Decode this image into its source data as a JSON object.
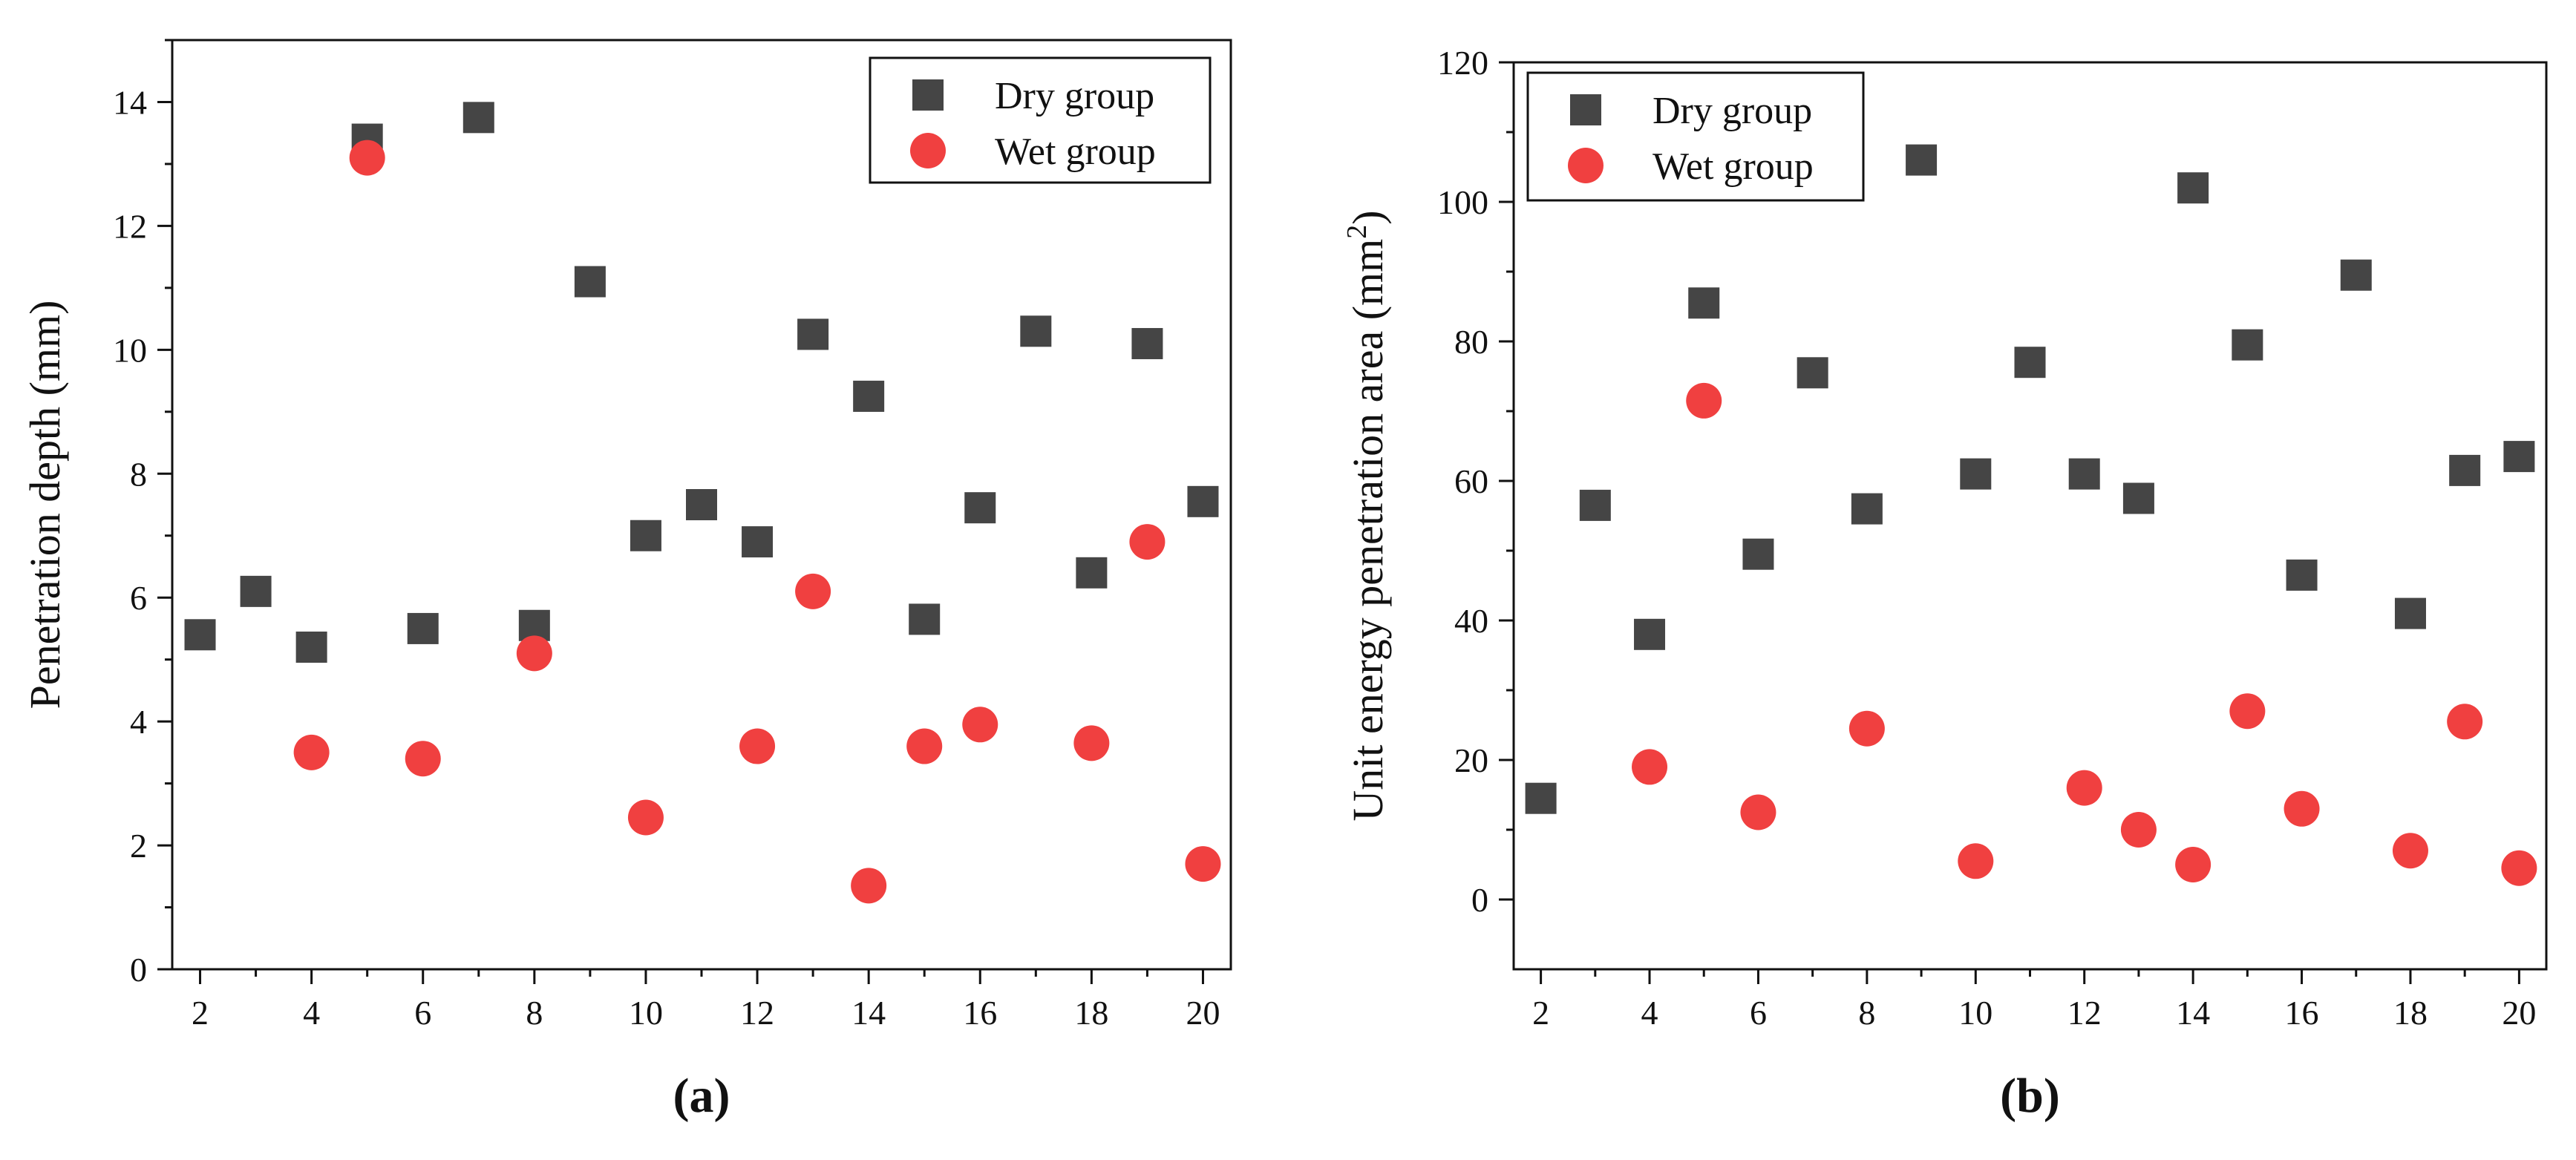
{
  "chart_data": [
    {
      "type": "scatter",
      "panel_label": "(a)",
      "xlabel": "",
      "ylabel": "Penetration depth (mm)",
      "xlim": [
        1.5,
        20.5
      ],
      "ylim": [
        0,
        15
      ],
      "xticks": [
        2,
        4,
        6,
        8,
        10,
        12,
        14,
        16,
        18,
        20
      ],
      "yticks": [
        0,
        2,
        4,
        6,
        8,
        10,
        12,
        14
      ],
      "grid": false,
      "legend_position": "top-right",
      "series": [
        {
          "name": "Dry group",
          "marker": "square",
          "color": "#454545",
          "points": [
            [
              2,
              5.4
            ],
            [
              3,
              6.1
            ],
            [
              4,
              5.2
            ],
            [
              5,
              13.4
            ],
            [
              6,
              5.5
            ],
            [
              7,
              13.75
            ],
            [
              8,
              5.55
            ],
            [
              9,
              11.1
            ],
            [
              10,
              7.0
            ],
            [
              11,
              7.5
            ],
            [
              12,
              6.9
            ],
            [
              13,
              10.25
            ],
            [
              14,
              9.25
            ],
            [
              15,
              5.65
            ],
            [
              16,
              7.45
            ],
            [
              17,
              10.3
            ],
            [
              18,
              6.4
            ],
            [
              19,
              10.1
            ],
            [
              20,
              7.55
            ]
          ]
        },
        {
          "name": "Wet group",
          "marker": "circle",
          "color": "#f04040",
          "points": [
            [
              4,
              3.5
            ],
            [
              5,
              13.1
            ],
            [
              6,
              3.4
            ],
            [
              8,
              5.1
            ],
            [
              10,
              2.45
            ],
            [
              12,
              3.6
            ],
            [
              13,
              6.1
            ],
            [
              14,
              1.35
            ],
            [
              15,
              3.6
            ],
            [
              16,
              3.95
            ],
            [
              18,
              3.65
            ],
            [
              19,
              6.9
            ],
            [
              20,
              1.7
            ]
          ]
        }
      ]
    },
    {
      "type": "scatter",
      "panel_label": "(b)",
      "xlabel": "",
      "ylabel": "Unit energy penetration area (mm",
      "ylabel_superscript": "2",
      "ylabel_suffix": ")",
      "xlim": [
        1.5,
        20.5
      ],
      "ylim": [
        -10,
        120
      ],
      "xticks": [
        2,
        4,
        6,
        8,
        10,
        12,
        14,
        16,
        18,
        20
      ],
      "yticks": [
        0,
        20,
        40,
        60,
        80,
        100,
        120
      ],
      "grid": false,
      "legend_position": "top-left",
      "series": [
        {
          "name": "Dry group",
          "marker": "square",
          "color": "#454545",
          "points": [
            [
              2,
              14.5
            ],
            [
              3,
              56.5
            ],
            [
              4,
              38.0
            ],
            [
              5,
              85.5
            ],
            [
              6,
              49.5
            ],
            [
              7,
              75.5
            ],
            [
              8,
              56.0
            ],
            [
              9,
              106.0
            ],
            [
              10,
              61.0
            ],
            [
              11,
              77.0
            ],
            [
              12,
              61.0
            ],
            [
              13,
              57.5
            ],
            [
              14,
              102.0
            ],
            [
              15,
              79.5
            ],
            [
              16,
              46.5
            ],
            [
              17,
              89.5
            ],
            [
              18,
              41.0
            ],
            [
              19,
              61.5
            ],
            [
              20,
              63.5
            ]
          ]
        },
        {
          "name": "Wet group",
          "marker": "circle",
          "color": "#f04040",
          "points": [
            [
              4,
              19.0
            ],
            [
              5,
              71.5
            ],
            [
              6,
              12.5
            ],
            [
              8,
              24.5
            ],
            [
              10,
              5.5
            ],
            [
              12,
              16.0
            ],
            [
              13,
              10.0
            ],
            [
              14,
              5.0
            ],
            [
              15,
              27.0
            ],
            [
              16,
              13.0
            ],
            [
              18,
              7.0
            ],
            [
              19,
              25.5
            ],
            [
              20,
              4.5
            ]
          ]
        }
      ]
    }
  ]
}
